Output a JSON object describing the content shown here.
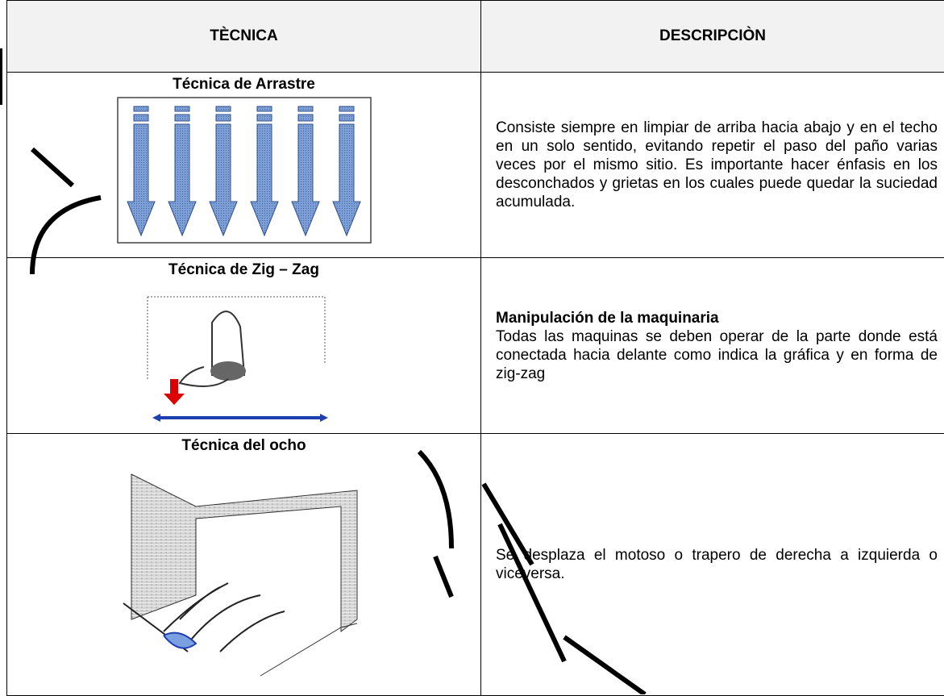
{
  "table": {
    "headers": [
      "TÈCNICA",
      "DESCRIPCIÒN"
    ],
    "rows": [
      {
        "technique": "Técnica de Arrastre",
        "description": "Consiste siempre en limpiar de arriba hacia abajo y en el techo en un solo sentido, evitando repetir el paso del paño varias veces por el mismo sitio. Es importante hacer énfasis en los desconchados y grietas en los cuales puede quedar la suciedad acumulada."
      },
      {
        "technique": "Técnica de Zig – Zag",
        "description_title": "Manipulación de la maquinaria",
        "description": "Todas las maquinas se deben operar de la parte donde está conectada hacia delante como indica la gráfica y en forma de zig-zag"
      },
      {
        "technique": "Técnica del ocho",
        "description": "Se desplaza el motoso o trapero de derecha a izquierda o viceversa."
      }
    ]
  }
}
